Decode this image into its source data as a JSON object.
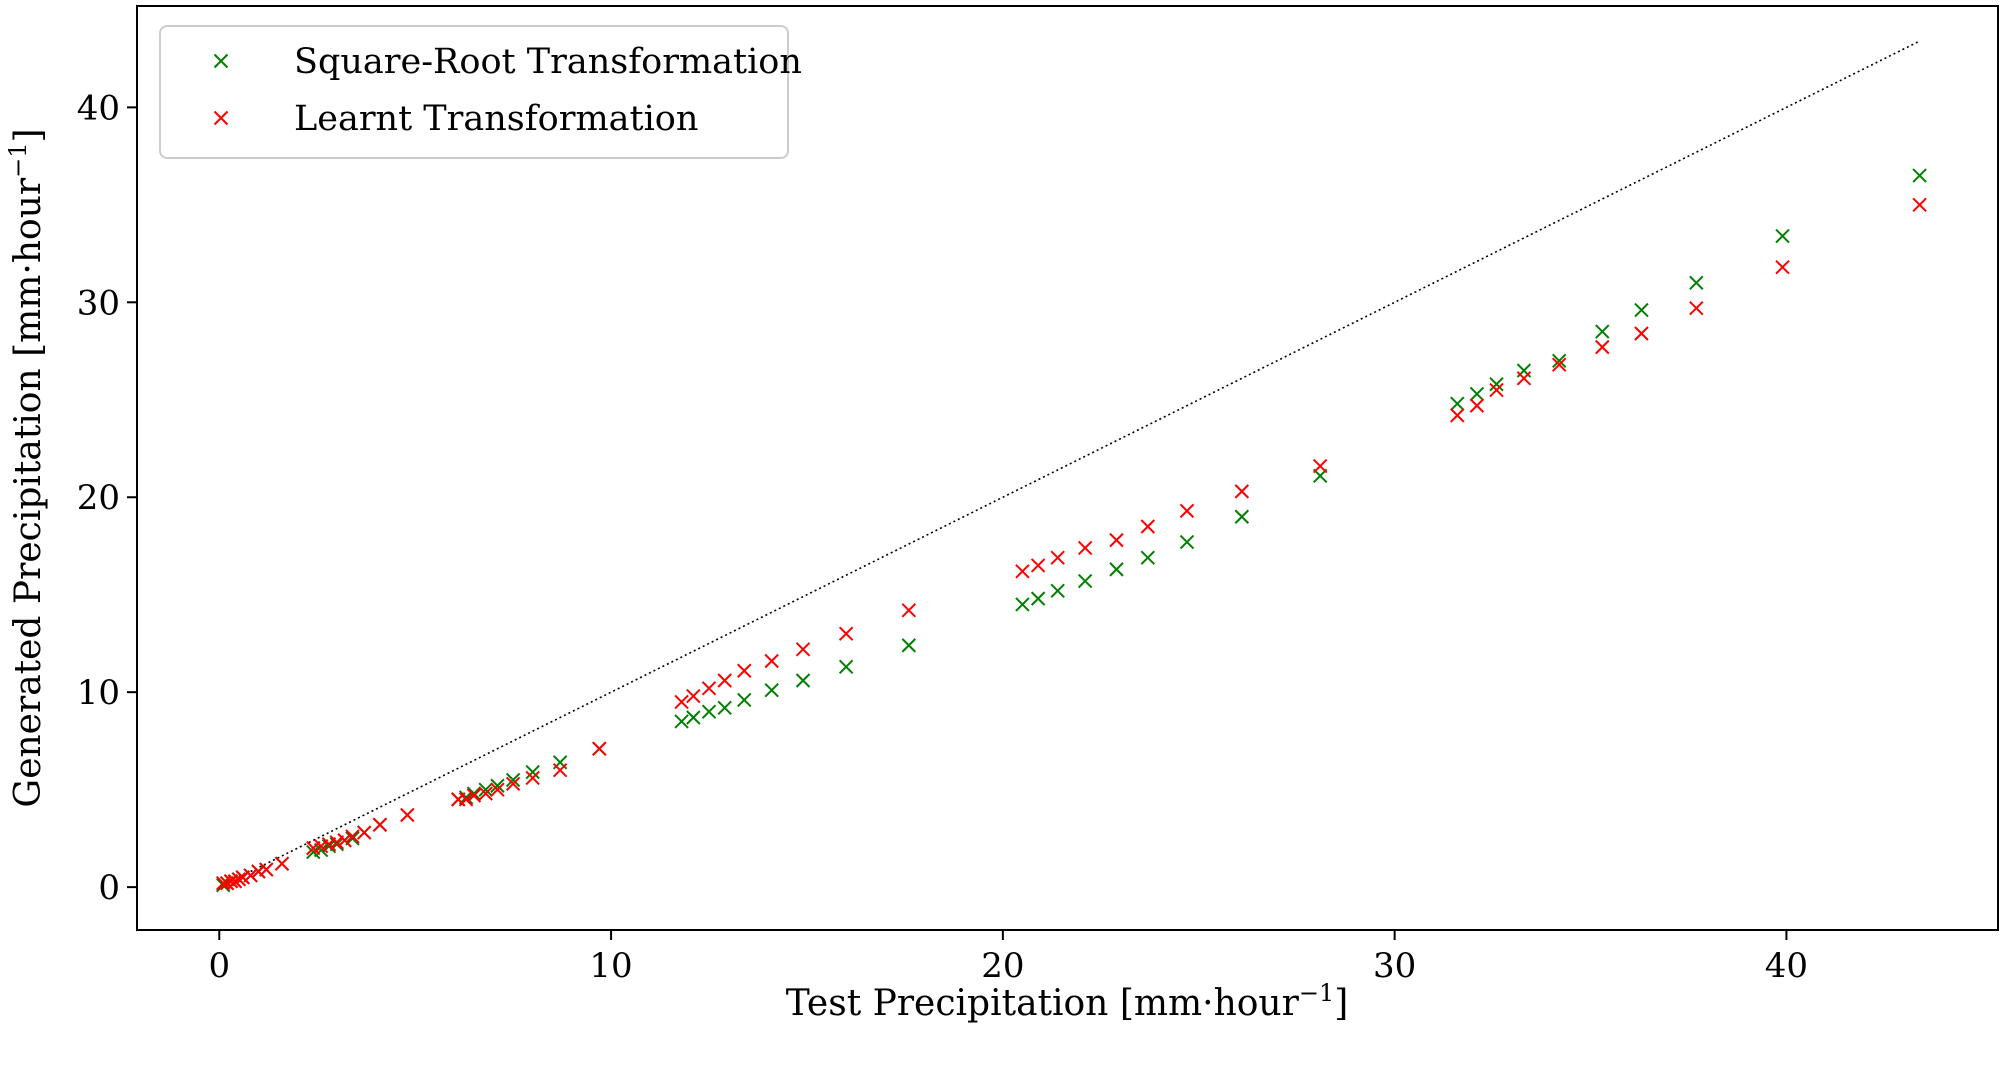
{
  "chart_data": {
    "type": "scatter",
    "xlabel_main": "Test Precipitation ",
    "xlabel_unit": "[mm·hour",
    "xlabel_sup": "−1",
    "xlabel_close": "]",
    "ylabel_main": "Generated Precipitation ",
    "ylabel_unit": "[mm·hour",
    "ylabel_sup": "−1",
    "ylabel_close": "]",
    "xlim": [
      -2.1,
      45.4
    ],
    "ylim": [
      -2.2,
      45.2
    ],
    "xticks": [
      0,
      10,
      20,
      30,
      40
    ],
    "xtick_labels": [
      "0",
      "10",
      "20",
      "30",
      "40"
    ],
    "yticks": [
      0,
      10,
      20,
      30,
      40
    ],
    "ytick_labels": [
      "0",
      "10",
      "20",
      "30",
      "40"
    ],
    "grid": false,
    "legend_position": "top-left",
    "marker": "x",
    "reference_line": {
      "style": "dotted",
      "color": "#000000",
      "x": [
        0,
        43.4
      ],
      "y": [
        0,
        43.4
      ]
    },
    "series": [
      {
        "name": "Square-Root Transformation",
        "color": "#008000",
        "x": [
          0.1,
          0.2,
          0.3,
          0.4,
          0.5,
          0.6,
          0.8,
          1.0,
          1.2,
          1.6,
          2.4,
          2.6,
          2.8,
          3.0,
          3.2,
          3.4,
          3.7,
          4.1,
          6.1,
          6.3,
          6.5,
          6.8,
          7.1,
          7.5,
          8.0,
          8.7,
          9.7,
          11.8,
          12.1,
          12.5,
          12.9,
          13.4,
          14.1,
          14.9,
          16.0,
          17.6,
          20.5,
          20.9,
          21.4,
          22.1,
          22.9,
          23.7,
          24.7,
          26.1,
          28.1,
          31.6,
          32.1,
          32.6,
          33.3,
          34.2,
          35.3,
          36.3,
          37.7,
          39.9,
          43.4
        ],
        "y": [
          0.1,
          0.2,
          0.3,
          0.3,
          0.4,
          0.5,
          0.6,
          0.8,
          0.9,
          1.2,
          1.8,
          1.9,
          2.1,
          2.2,
          2.4,
          2.5,
          2.8,
          3.2,
          4.5,
          4.6,
          4.8,
          5.0,
          5.2,
          5.5,
          5.9,
          6.4,
          7.1,
          8.5,
          8.7,
          9.0,
          9.2,
          9.6,
          10.1,
          10.6,
          11.3,
          12.4,
          14.5,
          14.8,
          15.2,
          15.7,
          16.3,
          16.9,
          17.7,
          19.0,
          21.1,
          24.8,
          25.3,
          25.8,
          26.5,
          27.0,
          28.5,
          29.6,
          31.0,
          33.4,
          36.5
        ]
      },
      {
        "name": "Learnt Transformation",
        "color": "#ff0000",
        "x": [
          0.1,
          0.2,
          0.3,
          0.4,
          0.5,
          0.6,
          0.8,
          1.0,
          1.2,
          1.6,
          2.4,
          2.6,
          2.8,
          3.0,
          3.2,
          3.4,
          3.7,
          4.1,
          4.8,
          6.1,
          6.3,
          6.5,
          6.8,
          7.1,
          7.5,
          8.0,
          8.7,
          9.7,
          11.8,
          12.1,
          12.5,
          12.9,
          13.4,
          14.1,
          14.9,
          16.0,
          17.6,
          20.5,
          20.9,
          21.4,
          22.1,
          22.9,
          23.7,
          24.7,
          26.1,
          28.1,
          31.6,
          32.1,
          32.6,
          33.3,
          34.2,
          35.3,
          36.3,
          37.7,
          39.9,
          43.4
        ],
        "y": [
          0.2,
          0.2,
          0.3,
          0.3,
          0.4,
          0.5,
          0.6,
          0.8,
          0.9,
          1.2,
          2.0,
          2.1,
          2.2,
          2.3,
          2.4,
          2.6,
          2.8,
          3.2,
          3.7,
          4.5,
          4.5,
          4.7,
          4.8,
          5.0,
          5.3,
          5.6,
          6.0,
          7.1,
          9.5,
          9.8,
          10.2,
          10.6,
          11.1,
          11.6,
          12.2,
          13.0,
          14.2,
          16.2,
          16.5,
          16.9,
          17.4,
          17.8,
          18.5,
          19.3,
          20.3,
          21.6,
          24.2,
          24.7,
          25.5,
          26.1,
          26.8,
          27.7,
          28.4,
          29.7,
          31.8,
          35.0
        ]
      }
    ]
  }
}
